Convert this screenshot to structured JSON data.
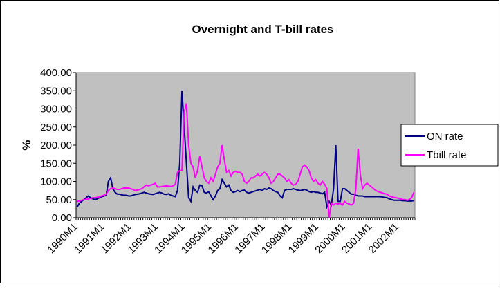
{
  "chart_data": {
    "type": "line",
    "title": "Overnight and T-bill rates",
    "y_label": "%",
    "legend": "right",
    "categories": [
      "1990M1",
      null,
      null,
      null,
      null,
      null,
      null,
      null,
      null,
      null,
      null,
      null,
      "1991M1",
      null,
      null,
      null,
      null,
      null,
      null,
      null,
      null,
      null,
      null,
      null,
      "1992M1",
      null,
      null,
      null,
      null,
      null,
      null,
      null,
      null,
      null,
      null,
      null,
      "1993M1",
      null,
      null,
      null,
      null,
      null,
      null,
      null,
      null,
      null,
      null,
      null,
      "1994M1",
      null,
      null,
      null,
      null,
      null,
      null,
      null,
      null,
      null,
      null,
      null,
      "1995M1",
      null,
      null,
      null,
      null,
      null,
      null,
      null,
      null,
      null,
      null,
      null,
      "1996M1",
      null,
      null,
      null,
      null,
      null,
      null,
      null,
      null,
      null,
      null,
      null,
      "1997M1",
      null,
      null,
      null,
      null,
      null,
      null,
      null,
      null,
      null,
      null,
      null,
      "1998M1",
      null,
      null,
      null,
      null,
      null,
      null,
      null,
      null,
      null,
      null,
      null,
      "1999M1",
      null,
      null,
      null,
      null,
      null,
      null,
      null,
      null,
      null,
      null,
      null,
      "2000M1",
      null,
      null,
      null,
      null,
      null,
      null,
      null,
      null,
      null,
      null,
      null,
      "2001M1",
      null,
      null,
      null,
      null,
      null,
      null,
      null,
      null,
      null,
      null,
      null,
      "2002M1",
      null,
      null,
      null,
      null,
      null,
      null,
      null
    ],
    "series": [
      {
        "name": "ON rate",
        "color": "#000080",
        "values": [
          30,
          40,
          45,
          50,
          55,
          60,
          55,
          52,
          50,
          52,
          55,
          58,
          60,
          62,
          100,
          110,
          80,
          70,
          65,
          65,
          63,
          62,
          62,
          60,
          60,
          62,
          64,
          65,
          66,
          68,
          70,
          68,
          66,
          65,
          64,
          66,
          68,
          70,
          68,
          65,
          64,
          66,
          62,
          60,
          58,
          75,
          150,
          350,
          250,
          150,
          55,
          45,
          85,
          75,
          70,
          90,
          88,
          70,
          68,
          72,
          60,
          50,
          60,
          75,
          80,
          105,
          95,
          85,
          90,
          75,
          70,
          72,
          75,
          72,
          75,
          76,
          70,
          68,
          70,
          72,
          74,
          76,
          78,
          75,
          80,
          78,
          82,
          80,
          75,
          72,
          70,
          60,
          55,
          75,
          78,
          78,
          78,
          80,
          78,
          76,
          75,
          76,
          78,
          76,
          72,
          70,
          72,
          70,
          70,
          68,
          66,
          70,
          30,
          45,
          35,
          80,
          200,
          45,
          45,
          80,
          80,
          75,
          70,
          65,
          65,
          62,
          60,
          60,
          60,
          58,
          58,
          58,
          58,
          58,
          58,
          58,
          58,
          57,
          56,
          55,
          52,
          50,
          48,
          48,
          48,
          48,
          47,
          47,
          46,
          46,
          46,
          47
        ]
      },
      {
        "name": "Tbill rate",
        "color": "#ff00ff",
        "values": [
          45,
          46,
          48,
          50,
          50,
          52,
          53,
          55,
          55,
          56,
          58,
          60,
          62,
          65,
          75,
          80,
          82,
          80,
          78,
          78,
          80,
          82,
          82,
          82,
          80,
          78,
          75,
          76,
          78,
          80,
          85,
          90,
          88,
          90,
          92,
          95,
          85,
          85,
          86,
          87,
          88,
          87,
          86,
          88,
          92,
          125,
          130,
          130,
          290,
          315,
          200,
          150,
          140,
          110,
          130,
          170,
          140,
          110,
          100,
          95,
          110,
          100,
          120,
          140,
          150,
          200,
          160,
          125,
          130,
          115,
          125,
          128,
          125,
          125,
          120,
          100,
          95,
          100,
          110,
          110,
          115,
          120,
          115,
          120,
          125,
          120,
          110,
          95,
          100,
          110,
          120,
          120,
          115,
          110,
          100,
          105,
          95,
          90,
          92,
          100,
          120,
          140,
          145,
          140,
          130,
          110,
          100,
          105,
          95,
          90,
          100,
          92,
          80,
          0,
          40,
          35,
          40,
          38,
          40,
          35,
          45,
          40,
          38,
          35,
          40,
          80,
          190,
          120,
          80,
          90,
          95,
          90,
          85,
          80,
          75,
          72,
          70,
          68,
          66,
          65,
          60,
          58,
          56,
          55,
          54,
          52,
          50,
          50,
          48,
          50,
          55,
          70
        ]
      }
    ],
    "ylim": [
      0,
      400
    ],
    "yticks": [
      {
        "value": 0,
        "label": "0.00"
      },
      {
        "value": 50,
        "label": "50.00"
      },
      {
        "value": 100,
        "label": "100.00"
      },
      {
        "value": 150,
        "label": "150.00"
      },
      {
        "value": 200,
        "label": "200.00"
      },
      {
        "value": 250,
        "label": "250.00"
      },
      {
        "value": 300,
        "label": "300.00"
      },
      {
        "value": 350,
        "label": "350.00"
      },
      {
        "value": 400,
        "label": "400.00"
      }
    ],
    "plot_color": "#c0c0c0"
  }
}
